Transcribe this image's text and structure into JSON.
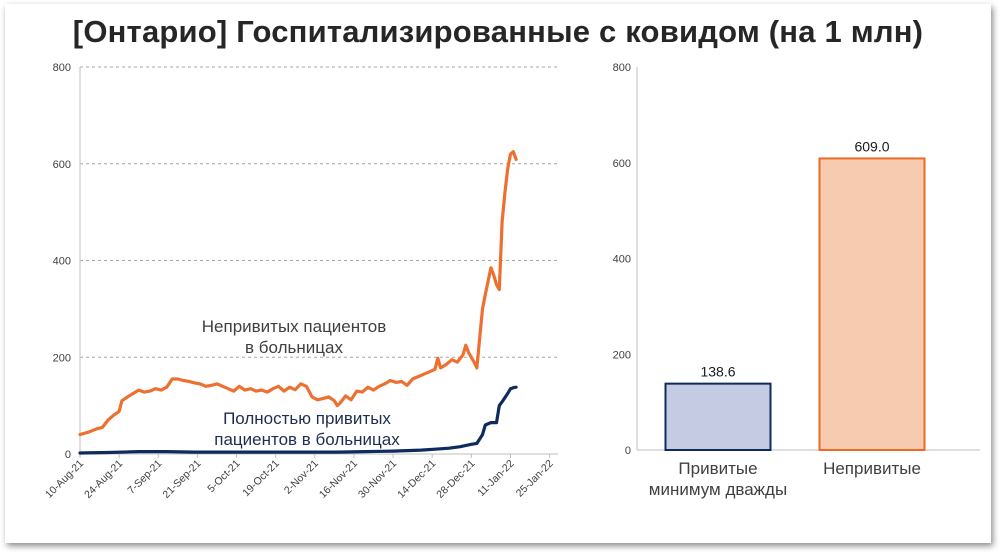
{
  "title": "[Онтарио] Госпитализированные с ковидом (на 1 млн)",
  "colors": {
    "unvaccinated": "#ed7031",
    "vaccinated": "#0f2a5c",
    "bar_vaccinated_fill": "#c5cbe3",
    "bar_vaccinated_stroke": "#0f2a5c",
    "bar_unvaccinated_fill": "#f6cbb0",
    "bar_unvaccinated_stroke": "#ed6a24",
    "grid": "#a6a6a6"
  },
  "chart_data": [
    {
      "type": "line",
      "x_start_date": "2021-08-10",
      "x_end_date": "2022-01-28",
      "ylim": [
        0,
        800
      ],
      "yticks": [
        0,
        200,
        400,
        600,
        800
      ],
      "xticks": [
        "10-Aug-21",
        "24-Aug-21",
        "7-Sep-21",
        "21-Sep-21",
        "5-Oct-21",
        "19-Oct-21",
        "2-Nov-21",
        "16-Nov-21",
        "30-Nov-21",
        "14-Dec-21",
        "28-Dec-21",
        "11-Jan-22",
        "25-Jan-22"
      ],
      "grid": "horizontal dashed",
      "series": [
        {
          "name": "Непривитых пациентов в больницах",
          "color": "#ed7031",
          "points": [
            [
              "2021-08-10",
              40
            ],
            [
              "2021-08-13",
              45
            ],
            [
              "2021-08-16",
              52
            ],
            [
              "2021-08-18",
              55
            ],
            [
              "2021-08-20",
              70
            ],
            [
              "2021-08-22",
              80
            ],
            [
              "2021-08-24",
              88
            ],
            [
              "2021-08-25",
              110
            ],
            [
              "2021-08-27",
              118
            ],
            [
              "2021-08-29",
              125
            ],
            [
              "2021-08-31",
              132
            ],
            [
              "2021-09-02",
              128
            ],
            [
              "2021-09-04",
              130
            ],
            [
              "2021-09-06",
              135
            ],
            [
              "2021-09-08",
              132
            ],
            [
              "2021-09-10",
              138
            ],
            [
              "2021-09-12",
              155
            ],
            [
              "2021-09-14",
              155
            ],
            [
              "2021-09-16",
              152
            ],
            [
              "2021-09-18",
              150
            ],
            [
              "2021-09-20",
              147
            ],
            [
              "2021-09-22",
              145
            ],
            [
              "2021-09-24",
              140
            ],
            [
              "2021-09-26",
              142
            ],
            [
              "2021-09-28",
              145
            ],
            [
              "2021-09-30",
              140
            ],
            [
              "2021-10-02",
              135
            ],
            [
              "2021-10-04",
              130
            ],
            [
              "2021-10-06",
              140
            ],
            [
              "2021-10-08",
              132
            ],
            [
              "2021-10-10",
              135
            ],
            [
              "2021-10-12",
              130
            ],
            [
              "2021-10-14",
              132
            ],
            [
              "2021-10-16",
              128
            ],
            [
              "2021-10-18",
              135
            ],
            [
              "2021-10-20",
              140
            ],
            [
              "2021-10-22",
              130
            ],
            [
              "2021-10-24",
              138
            ],
            [
              "2021-10-26",
              133
            ],
            [
              "2021-10-28",
              145
            ],
            [
              "2021-10-30",
              140
            ],
            [
              "2021-11-01",
              118
            ],
            [
              "2021-11-03",
              112
            ],
            [
              "2021-11-05",
              115
            ],
            [
              "2021-11-07",
              118
            ],
            [
              "2021-11-09",
              110
            ],
            [
              "2021-11-10",
              100
            ],
            [
              "2021-11-11",
              105
            ],
            [
              "2021-11-13",
              120
            ],
            [
              "2021-11-15",
              112
            ],
            [
              "2021-11-17",
              130
            ],
            [
              "2021-11-19",
              128
            ],
            [
              "2021-11-21",
              138
            ],
            [
              "2021-11-23",
              132
            ],
            [
              "2021-11-25",
              140
            ],
            [
              "2021-11-27",
              145
            ],
            [
              "2021-11-29",
              152
            ],
            [
              "2021-12-01",
              148
            ],
            [
              "2021-12-03",
              150
            ],
            [
              "2021-12-05",
              142
            ],
            [
              "2021-12-07",
              155
            ],
            [
              "2021-12-09",
              160
            ],
            [
              "2021-12-11",
              165
            ],
            [
              "2021-12-13",
              170
            ],
            [
              "2021-12-15",
              175
            ],
            [
              "2021-12-16",
              198
            ],
            [
              "2021-12-17",
              178
            ],
            [
              "2021-12-19",
              185
            ],
            [
              "2021-12-21",
              195
            ],
            [
              "2021-12-23",
              190
            ],
            [
              "2021-12-25",
              205
            ],
            [
              "2021-12-26",
              225
            ],
            [
              "2021-12-27",
              210
            ],
            [
              "2021-12-29",
              190
            ],
            [
              "2021-12-30",
              178
            ],
            [
              "2021-12-31",
              240
            ],
            [
              "2022-01-01",
              300
            ],
            [
              "2022-01-02",
              330
            ],
            [
              "2022-01-04",
              385
            ],
            [
              "2022-01-05",
              370
            ],
            [
              "2022-01-06",
              350
            ],
            [
              "2022-01-07",
              340
            ],
            [
              "2022-01-08",
              480
            ],
            [
              "2022-01-09",
              540
            ],
            [
              "2022-01-10",
              590
            ],
            [
              "2022-01-11",
              620
            ],
            [
              "2022-01-12",
              625
            ],
            [
              "2022-01-13",
              609
            ]
          ]
        },
        {
          "name": "Полностью привитых пациентов в больницах",
          "color": "#0f2a5c",
          "points": [
            [
              "2021-08-10",
              2
            ],
            [
              "2021-08-20",
              3
            ],
            [
              "2021-08-31",
              5
            ],
            [
              "2021-09-10",
              5
            ],
            [
              "2021-09-20",
              4
            ],
            [
              "2021-09-30",
              4
            ],
            [
              "2021-10-10",
              4
            ],
            [
              "2021-10-20",
              4
            ],
            [
              "2021-10-31",
              4
            ],
            [
              "2021-11-10",
              4
            ],
            [
              "2021-11-20",
              5
            ],
            [
              "2021-11-30",
              6
            ],
            [
              "2021-12-10",
              8
            ],
            [
              "2021-12-15",
              10
            ],
            [
              "2021-12-20",
              12
            ],
            [
              "2021-12-24",
              15
            ],
            [
              "2021-12-28",
              20
            ],
            [
              "2021-12-30",
              22
            ],
            [
              "2022-01-01",
              40
            ],
            [
              "2022-01-02",
              60
            ],
            [
              "2022-01-04",
              65
            ],
            [
              "2022-01-06",
              65
            ],
            [
              "2022-01-07",
              100
            ],
            [
              "2022-01-08",
              108
            ],
            [
              "2022-01-10",
              125
            ],
            [
              "2022-01-11",
              135
            ],
            [
              "2022-01-12",
              137
            ],
            [
              "2022-01-13",
              138
            ]
          ]
        }
      ],
      "annotations": [
        {
          "text_lines": [
            "Непривитых пациентов",
            "в больницах"
          ],
          "color": "#404040"
        },
        {
          "text_lines": [
            "Полностью привитых",
            "пациентов в больницах"
          ],
          "color": "#1f2d4f"
        }
      ]
    },
    {
      "type": "bar",
      "ylim": [
        0,
        800
      ],
      "yticks": [
        0,
        200,
        400,
        600,
        800
      ],
      "grid": "none",
      "categories": [
        [
          "Привитые",
          "минимум дважды"
        ],
        [
          "Непривитые"
        ]
      ],
      "values": [
        138.6,
        609.0
      ],
      "value_labels": [
        "138.6",
        "609.0"
      ]
    }
  ]
}
